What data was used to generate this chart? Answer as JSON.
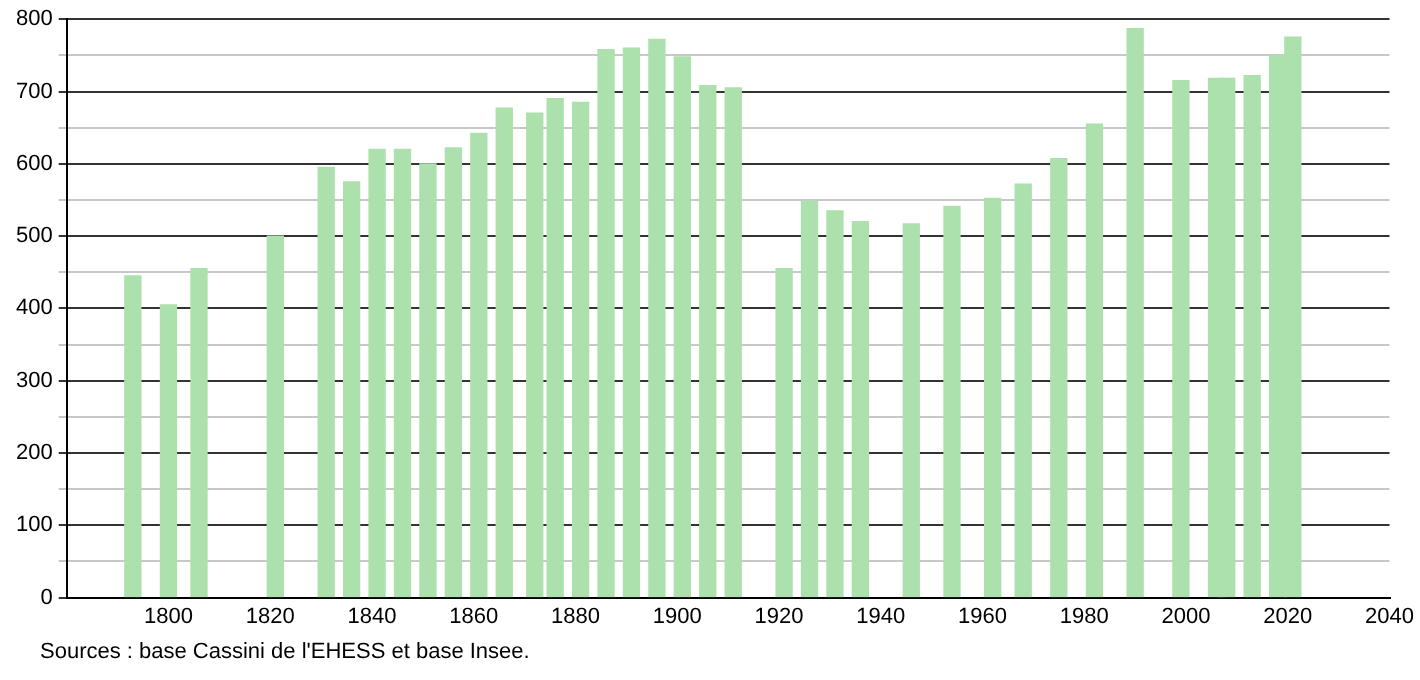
{
  "chart_data": {
    "type": "bar",
    "x": [
      1793,
      1800,
      1806,
      1821,
      1831,
      1836,
      1841,
      1846,
      1851,
      1856,
      1861,
      1866,
      1872,
      1876,
      1881,
      1886,
      1891,
      1896,
      1901,
      1906,
      1911,
      1921,
      1926,
      1931,
      1936,
      1946,
      1954,
      1962,
      1968,
      1975,
      1982,
      1990,
      1999,
      2006,
      2008,
      2013,
      2018,
      2021
    ],
    "values": [
      445,
      405,
      455,
      500,
      595,
      575,
      620,
      620,
      600,
      622,
      642,
      677,
      670,
      690,
      685,
      758,
      760,
      772,
      748,
      708,
      705,
      455,
      548,
      535,
      520,
      517,
      541,
      552,
      572,
      607,
      655,
      787,
      715,
      718,
      718,
      722,
      750,
      775
    ],
    "color": "#ace0ac",
    "xlim": [
      1780,
      2040
    ],
    "xticks": [
      1800,
      1820,
      1840,
      1860,
      1880,
      1900,
      1920,
      1940,
      1960,
      1980,
      2000,
      2020,
      2040
    ],
    "ylim": [
      0,
      800
    ],
    "yticks": [
      0,
      {
        "value": 50,
        "label": null
      },
      100,
      {
        "value": 150,
        "label": null
      },
      200,
      {
        "value": 250,
        "label": null
      },
      300,
      {
        "value": 350,
        "label": null
      },
      400,
      {
        "value": 450,
        "label": null
      },
      500,
      {
        "value": 550,
        "label": null
      },
      600,
      {
        "value": 650,
        "label": null
      },
      700,
      {
        "value": 750,
        "label": null
      },
      800
    ],
    "grid": "y",
    "annotations": [
      "Sources : base Cassini de l'EHESS et base Insee."
    ]
  }
}
